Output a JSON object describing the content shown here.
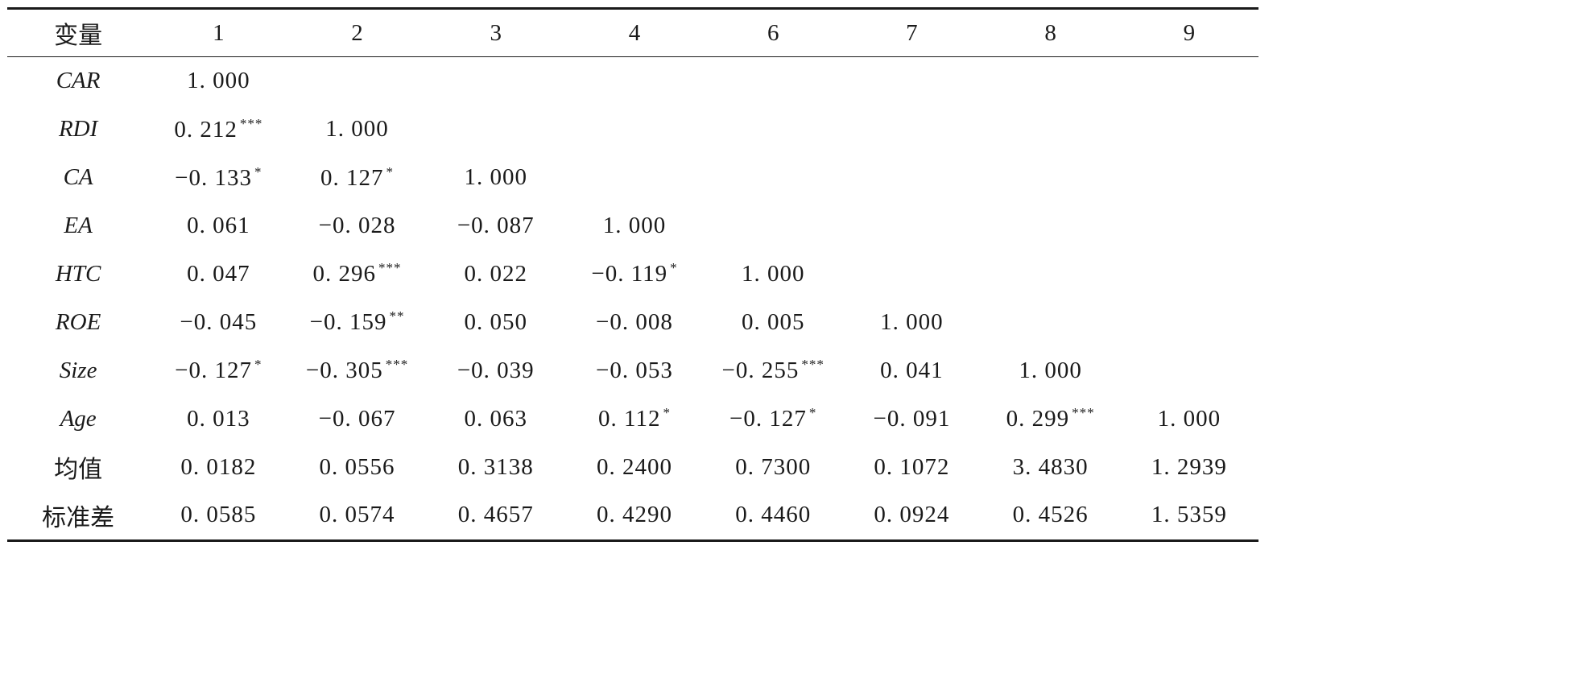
{
  "table": {
    "header": [
      "变量",
      "1",
      "2",
      "3",
      "4",
      "6",
      "7",
      "8",
      "9"
    ],
    "rows": [
      {
        "label": "CAR",
        "italic": true,
        "cells": [
          {
            "v": "1. 000",
            "s": ""
          },
          null,
          null,
          null,
          null,
          null,
          null,
          null
        ]
      },
      {
        "label": "RDI",
        "italic": true,
        "cells": [
          {
            "v": "0. 212",
            "s": "***"
          },
          {
            "v": "1. 000",
            "s": ""
          },
          null,
          null,
          null,
          null,
          null,
          null
        ]
      },
      {
        "label": "CA",
        "italic": true,
        "cells": [
          {
            "v": "−0. 133",
            "s": "*"
          },
          {
            "v": "0. 127",
            "s": "*"
          },
          {
            "v": "1. 000",
            "s": ""
          },
          null,
          null,
          null,
          null,
          null
        ]
      },
      {
        "label": "EA",
        "italic": true,
        "cells": [
          {
            "v": "0. 061",
            "s": ""
          },
          {
            "v": "−0. 028",
            "s": ""
          },
          {
            "v": "−0. 087",
            "s": ""
          },
          {
            "v": "1. 000",
            "s": ""
          },
          null,
          null,
          null,
          null
        ]
      },
      {
        "label": "HTC",
        "italic": true,
        "cells": [
          {
            "v": "0. 047",
            "s": ""
          },
          {
            "v": "0. 296",
            "s": "***"
          },
          {
            "v": "0. 022",
            "s": ""
          },
          {
            "v": "−0. 119",
            "s": "*"
          },
          {
            "v": "1. 000",
            "s": ""
          },
          null,
          null,
          null
        ]
      },
      {
        "label": "ROE",
        "italic": true,
        "cells": [
          {
            "v": "−0. 045",
            "s": ""
          },
          {
            "v": "−0. 159",
            "s": "**"
          },
          {
            "v": "0. 050",
            "s": ""
          },
          {
            "v": "−0. 008",
            "s": ""
          },
          {
            "v": "0. 005",
            "s": ""
          },
          {
            "v": "1. 000",
            "s": ""
          },
          null,
          null
        ]
      },
      {
        "label": "Size",
        "italic": true,
        "cells": [
          {
            "v": "−0. 127",
            "s": "*"
          },
          {
            "v": "−0. 305",
            "s": "***"
          },
          {
            "v": "−0. 039",
            "s": ""
          },
          {
            "v": "−0. 053",
            "s": ""
          },
          {
            "v": "−0. 255",
            "s": "***"
          },
          {
            "v": "0. 041",
            "s": ""
          },
          {
            "v": "1. 000",
            "s": ""
          },
          null
        ]
      },
      {
        "label": "Age",
        "italic": true,
        "cells": [
          {
            "v": "0. 013",
            "s": ""
          },
          {
            "v": "−0. 067",
            "s": ""
          },
          {
            "v": "0. 063",
            "s": ""
          },
          {
            "v": "0. 112",
            "s": "*"
          },
          {
            "v": "−0. 127",
            "s": "*"
          },
          {
            "v": "−0. 091",
            "s": ""
          },
          {
            "v": "0. 299",
            "s": "***"
          },
          {
            "v": "1. 000",
            "s": ""
          }
        ]
      },
      {
        "label": "均值",
        "italic": false,
        "cells": [
          {
            "v": "0. 0182",
            "s": ""
          },
          {
            "v": "0. 0556",
            "s": ""
          },
          {
            "v": "0. 3138",
            "s": ""
          },
          {
            "v": "0. 2400",
            "s": ""
          },
          {
            "v": "0. 7300",
            "s": ""
          },
          {
            "v": "0. 1072",
            "s": ""
          },
          {
            "v": "3. 4830",
            "s": ""
          },
          {
            "v": "1. 2939",
            "s": ""
          }
        ]
      },
      {
        "label": "标准差",
        "italic": false,
        "cells": [
          {
            "v": "0. 0585",
            "s": ""
          },
          {
            "v": "0. 0574",
            "s": ""
          },
          {
            "v": "0. 4657",
            "s": ""
          },
          {
            "v": "0. 4290",
            "s": ""
          },
          {
            "v": "0. 4460",
            "s": ""
          },
          {
            "v": "0. 0924",
            "s": ""
          },
          {
            "v": "0. 4526",
            "s": ""
          },
          {
            "v": "1. 5359",
            "s": ""
          }
        ]
      }
    ]
  }
}
